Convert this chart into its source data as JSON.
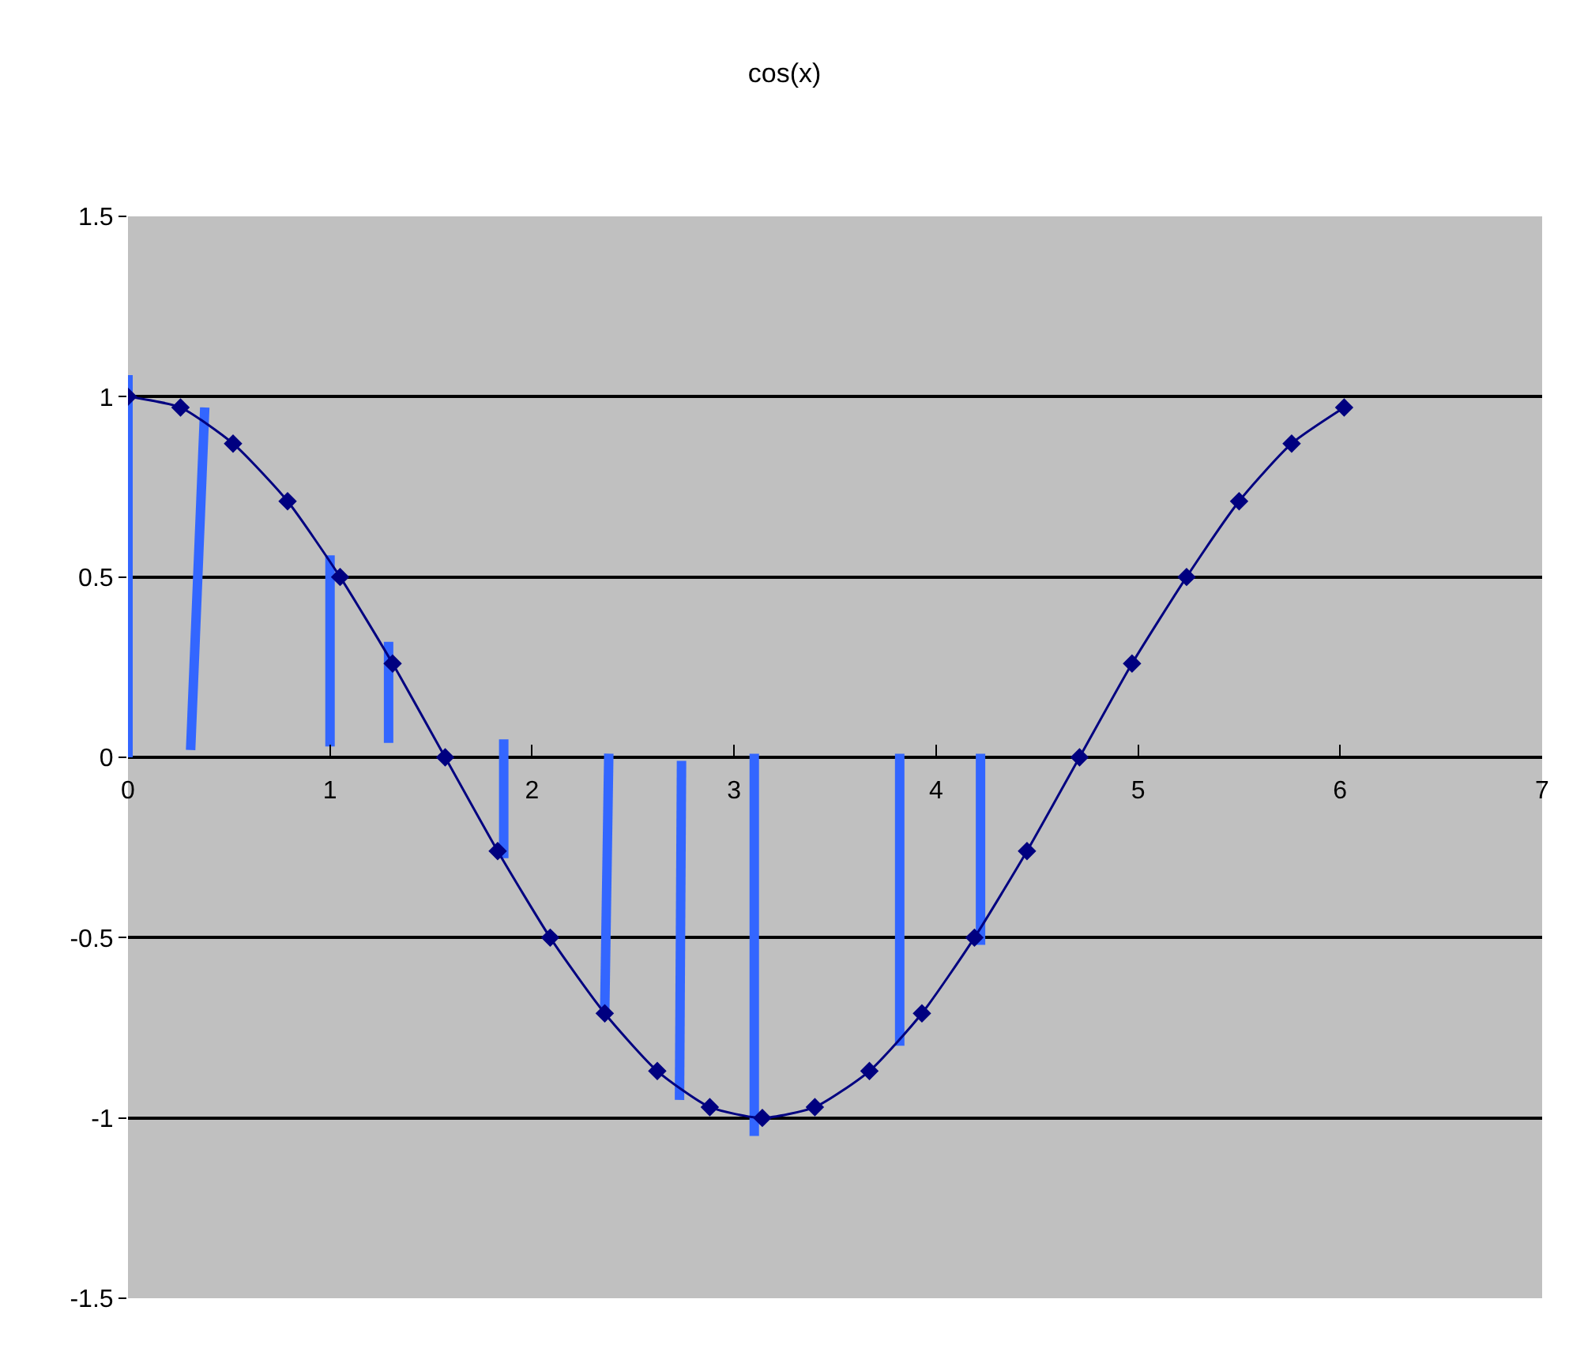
{
  "chart_data": {
    "type": "line",
    "title": "cos(x)",
    "series": [
      {
        "color": "#000080",
        "marker": "diamond",
        "x": [
          0,
          0.26,
          0.52,
          0.79,
          1.05,
          1.31,
          1.57,
          1.83,
          2.09,
          2.36,
          2.62,
          2.88,
          3.14,
          3.4,
          3.67,
          3.93,
          4.19,
          4.45,
          4.71,
          4.97,
          5.24,
          5.5,
          5.76,
          6.02
        ],
        "values": [
          1,
          0.97,
          0.87,
          0.71,
          0.5,
          0.26,
          0,
          -0.26,
          -0.5,
          -0.71,
          -0.87,
          -0.97,
          -1,
          -0.97,
          -0.87,
          -0.71,
          -0.5,
          -0.26,
          0,
          0.26,
          0.5,
          0.71,
          0.87,
          0.97
        ]
      },
      {
        "color": "#3366ff",
        "marker": "none",
        "x": [
          0,
          0,
          null,
          0.38,
          0.31,
          null,
          1.0,
          1.0,
          null,
          1.29,
          1.29,
          null,
          1.86,
          1.86,
          null,
          2.38,
          2.36,
          null,
          2.74,
          2.73,
          null,
          3.1,
          3.1,
          null,
          3.82,
          3.82,
          null,
          4.22,
          4.22
        ],
        "values": [
          1.06,
          0,
          null,
          0.97,
          0.02,
          null,
          0.56,
          0.03,
          null,
          0.32,
          0.04,
          null,
          0.05,
          -0.28,
          null,
          0.01,
          -0.7,
          null,
          -0.01,
          -0.95,
          null,
          0.01,
          -1.05,
          null,
          0.01,
          -0.8,
          null,
          0.01,
          -0.52
        ]
      }
    ],
    "xlim": [
      0,
      7
    ],
    "xticks": [
      0,
      1,
      2,
      3,
      4,
      5,
      6,
      7
    ],
    "ylim": [
      -1.5,
      1.5
    ],
    "yticks": [
      -1.5,
      -1,
      -0.5,
      0,
      0.5,
      1,
      1.5
    ],
    "grid": "y"
  }
}
